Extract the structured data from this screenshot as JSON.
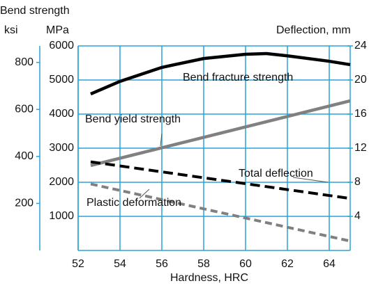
{
  "chart_data": {
    "type": "line",
    "y_title": "Bend strength",
    "y3_label": "ksi",
    "y_label": "MPa",
    "y2_label": "Deflection, mm",
    "x_label": "Hardness, HRC",
    "xlim": [
      52,
      65
    ],
    "xticks": [
      52,
      54,
      56,
      58,
      60,
      62,
      64
    ],
    "ylim": [
      0,
      6000
    ],
    "yticks": [
      1000,
      2000,
      3000,
      4000,
      5000,
      6000
    ],
    "y2lim": [
      0,
      24
    ],
    "y2ticks": [
      4,
      8,
      12,
      16,
      20,
      24
    ],
    "y3lim": [
      0,
      870.2
    ],
    "y3ticks": [
      200,
      400,
      600,
      800
    ],
    "grid": true,
    "series": [
      {
        "name": "Bend fracture strength",
        "color": "#000000",
        "dash": false,
        "axis": "y",
        "x": [
          52.6,
          54,
          56,
          58,
          60,
          61,
          62,
          64,
          65
        ],
        "values": [
          4590,
          4960,
          5370,
          5630,
          5755,
          5775,
          5710,
          5550,
          5450
        ]
      },
      {
        "name": "Bend yield strength",
        "color": "#808080",
        "dash": false,
        "axis": "y",
        "x": [
          52.6,
          65
        ],
        "values": [
          2490,
          4390
        ]
      },
      {
        "name": "Total deflection",
        "color": "#000000",
        "dash": true,
        "axis": "y2",
        "x": [
          52.6,
          65
        ],
        "values": [
          10.4,
          6.1
        ]
      },
      {
        "name": "Plastic deformation",
        "color": "#808080",
        "dash": true,
        "axis": "y2",
        "x": [
          52.6,
          65
        ],
        "values": [
          7.8,
          1.1
        ]
      }
    ]
  }
}
